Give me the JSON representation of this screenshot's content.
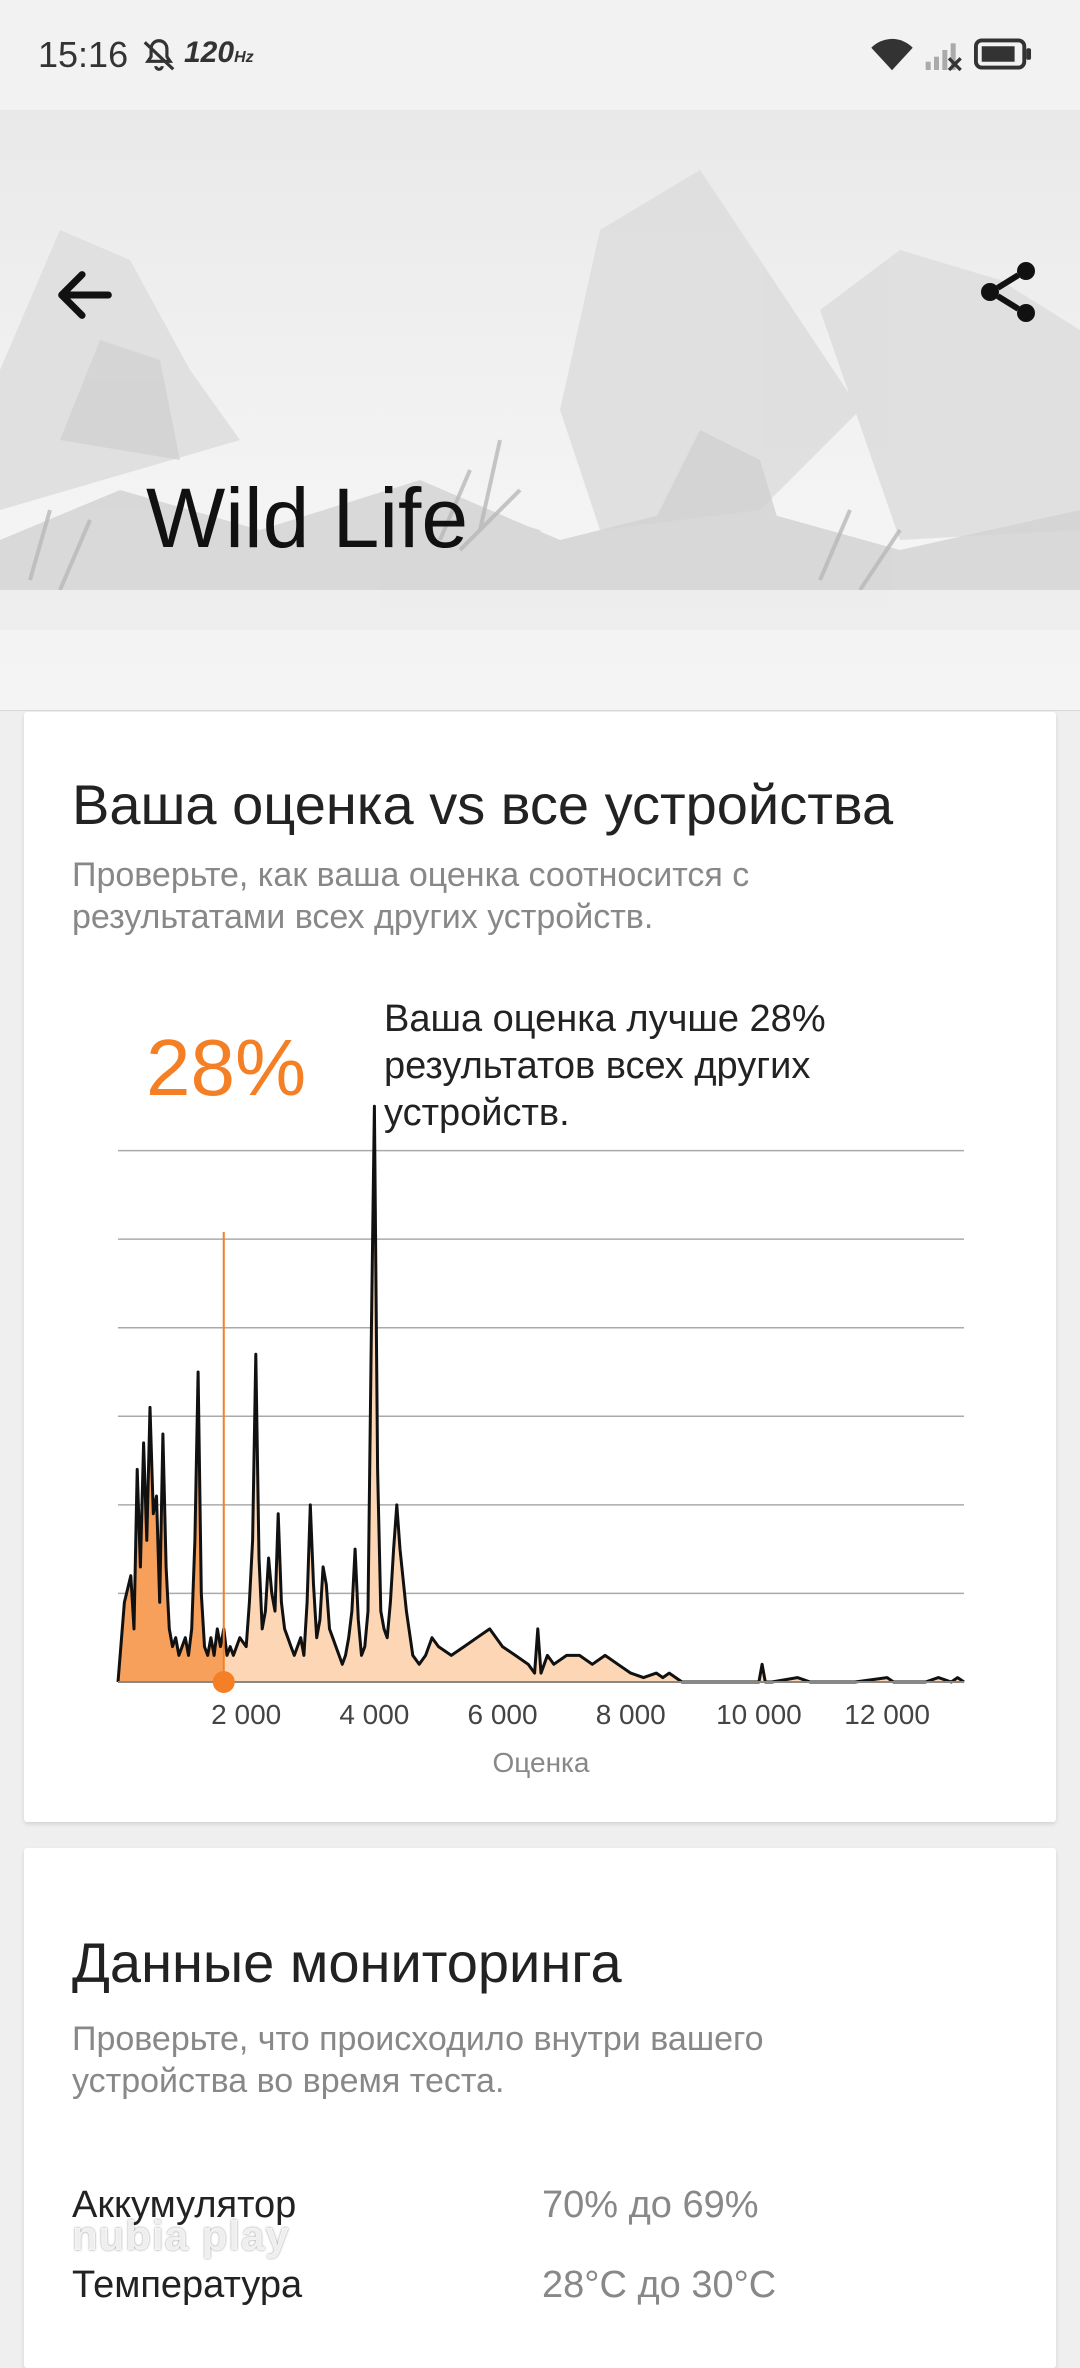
{
  "status_bar": {
    "time": "15:16",
    "refresh_rate": "120",
    "refresh_unit": "Hz"
  },
  "header": {
    "title": "Wild Life"
  },
  "comparison": {
    "title": "Ваша оценка vs все устройства",
    "subtitle": "Проверьте, как ваша оценка соотносится с результатами всех других устройств.",
    "percent": "28%",
    "text": "Ваша оценка лучше 28% результатов всех других устройств."
  },
  "chart_data": {
    "type": "area",
    "xlabel": "Оценка",
    "xlim": [
      0,
      13200
    ],
    "ylim": [
      0,
      7
    ],
    "xticks": [
      2000,
      4000,
      6000,
      8000,
      10000,
      12000
    ],
    "xtick_labels": [
      "2 000",
      "4 000",
      "6 000",
      "8 000",
      "10 000",
      "12 000"
    ],
    "your_score": 1650,
    "accent_color": "#f47f24",
    "fill_color": "#fdd7b5",
    "x": [
      0,
      100,
      200,
      250,
      300,
      350,
      400,
      450,
      500,
      550,
      600,
      650,
      700,
      750,
      800,
      850,
      900,
      950,
      1000,
      1050,
      1100,
      1150,
      1200,
      1250,
      1300,
      1350,
      1400,
      1450,
      1500,
      1550,
      1600,
      1650,
      1700,
      1750,
      1800,
      1900,
      2000,
      2050,
      2100,
      2150,
      2200,
      2250,
      2300,
      2350,
      2400,
      2450,
      2500,
      2550,
      2600,
      2650,
      2700,
      2750,
      2800,
      2850,
      2900,
      2950,
      3000,
      3050,
      3100,
      3150,
      3200,
      3250,
      3300,
      3350,
      3400,
      3450,
      3500,
      3550,
      3600,
      3650,
      3700,
      3750,
      3800,
      3850,
      3900,
      3950,
      4000,
      4050,
      4100,
      4150,
      4200,
      4250,
      4300,
      4350,
      4400,
      4500,
      4600,
      4700,
      4800,
      4900,
      5000,
      5200,
      5400,
      5600,
      5800,
      6000,
      6200,
      6400,
      6500,
      6550,
      6600,
      6650,
      6700,
      6800,
      7000,
      7200,
      7400,
      7600,
      7800,
      8000,
      8200,
      8400,
      8500,
      8600,
      8800,
      9000,
      9500,
      10000,
      10050,
      10100,
      10150,
      10200,
      10600,
      10800,
      11000,
      11500,
      12000,
      12100,
      12200,
      12600,
      12800,
      13000,
      13100,
      13200
    ],
    "y": [
      0,
      0.9,
      1.2,
      0.6,
      2.4,
      1.3,
      2.7,
      1.6,
      3.1,
      1.9,
      2.1,
      0.9,
      2.8,
      1.3,
      0.6,
      0.4,
      0.5,
      0.3,
      0.4,
      0.5,
      0.3,
      0.6,
      1.6,
      3.5,
      1.0,
      0.4,
      0.3,
      0.5,
      0.3,
      0.6,
      0.4,
      0.6,
      0.3,
      0.4,
      0.3,
      0.5,
      0.4,
      0.9,
      1.6,
      3.7,
      1.4,
      0.6,
      0.8,
      1.4,
      1.0,
      0.8,
      1.9,
      0.9,
      0.6,
      0.5,
      0.4,
      0.3,
      0.4,
      0.5,
      0.3,
      0.9,
      2.0,
      1.1,
      0.5,
      0.7,
      1.3,
      1.1,
      0.6,
      0.5,
      0.4,
      0.3,
      0.2,
      0.3,
      0.5,
      0.8,
      1.5,
      0.7,
      0.3,
      0.4,
      0.8,
      3.8,
      6.5,
      2.4,
      0.8,
      0.6,
      0.5,
      0.9,
      1.5,
      2.0,
      1.5,
      0.8,
      0.3,
      0.2,
      0.3,
      0.5,
      0.4,
      0.3,
      0.4,
      0.5,
      0.6,
      0.4,
      0.3,
      0.2,
      0.1,
      0.6,
      0.1,
      0.2,
      0.3,
      0.2,
      0.3,
      0.3,
      0.2,
      0.3,
      0.2,
      0.1,
      0.05,
      0.1,
      0.05,
      0.1,
      0.0,
      0.0,
      0.0,
      0.0,
      0.2,
      0.0,
      0.0,
      0.0,
      0.05,
      0.0,
      0.0,
      0.0,
      0.05,
      0.0,
      0.0,
      0.0,
      0.05,
      0.0,
      0.05,
      0.0
    ]
  },
  "monitoring": {
    "title": "Данные мониторинга",
    "subtitle": "Проверьте, что происходило внутри вашего устройства во время теста.",
    "rows": [
      {
        "label": "Аккумулятор",
        "value": "70% до 69%"
      },
      {
        "label": "Температура",
        "value": "28°C до 30°C"
      }
    ]
  },
  "watermark": "nubia play"
}
